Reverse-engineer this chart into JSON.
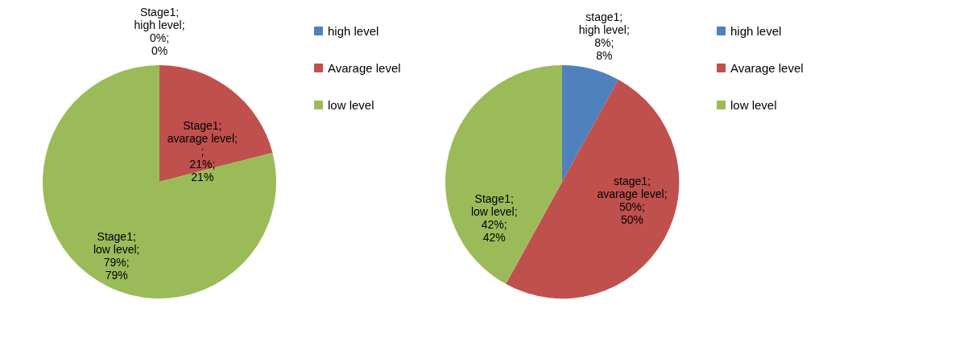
{
  "chart_data": [
    {
      "type": "pie",
      "categories": [
        "high level",
        "Avarage level",
        "low level"
      ],
      "values": [
        0,
        21,
        79
      ],
      "colors": [
        "#4f81bd",
        "#c0504d",
        "#9bbb59"
      ],
      "value_labels": [
        "Stage1; high level; 0%; 0%",
        "Stage1; avarage level; ; 21%; 21%",
        "Stage1; low level; 79%; 79%"
      ],
      "legend": "right"
    },
    {
      "type": "pie",
      "categories": [
        "high level",
        "Avarage level",
        "low level"
      ],
      "values": [
        8,
        50,
        42
      ],
      "colors": [
        "#4f81bd",
        "#c0504d",
        "#9bbb59"
      ],
      "value_labels": [
        "stage1; high level; 8%; 8%",
        "stage1; avarage level; 50%; 50%",
        "Stage1; low level; 42%; 42%"
      ],
      "legend": "right"
    }
  ]
}
